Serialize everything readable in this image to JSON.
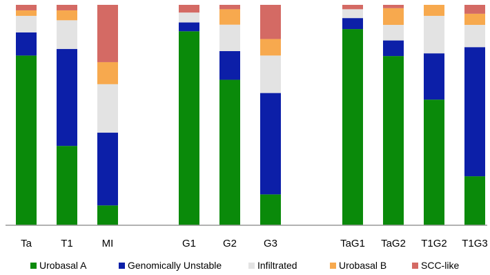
{
  "chart_data": {
    "type": "bar",
    "stacked": true,
    "normalized": true,
    "title": "",
    "xlabel": "",
    "ylabel": "",
    "ylim": [
      0,
      1
    ],
    "categories": [
      "Ta",
      "T1",
      "MI",
      "G1",
      "G2",
      "G3",
      "TaG1",
      "TaG2",
      "T1G2",
      "T1G3"
    ],
    "groups": [
      [
        "Ta",
        "T1",
        "MI"
      ],
      [
        "G1",
        "G2",
        "G3"
      ],
      [
        "TaG1",
        "TaG2",
        "T1G2",
        "T1G3"
      ]
    ],
    "series": [
      {
        "name": "Urobasal A",
        "color": "#0a8a0a",
        "values": [
          0.77,
          0.36,
          0.09,
          0.88,
          0.66,
          0.14,
          0.89,
          0.76,
          0.57,
          0.22
        ]
      },
      {
        "name": "Genomically Unstable",
        "color": "#0c1fa8",
        "values": [
          0.105,
          0.44,
          0.33,
          0.04,
          0.13,
          0.46,
          0.05,
          0.07,
          0.21,
          0.58
        ]
      },
      {
        "name": "Infiltrated",
        "color": "#e3e3e3",
        "values": [
          0.075,
          0.13,
          0.22,
          0.045,
          0.12,
          0.17,
          0.04,
          0.07,
          0.17,
          0.1
        ]
      },
      {
        "name": "Urobasal B",
        "color": "#f7a94e",
        "values": [
          0.025,
          0.045,
          0.1,
          0.0,
          0.07,
          0.075,
          0.0,
          0.075,
          0.05,
          0.05
        ]
      },
      {
        "name": "SCC-like",
        "color": "#d46a64",
        "values": [
          0.025,
          0.025,
          0.26,
          0.035,
          0.02,
          0.155,
          0.02,
          0.015,
          0.0,
          0.04
        ]
      }
    ],
    "legend_position": "bottom",
    "grid": false
  }
}
